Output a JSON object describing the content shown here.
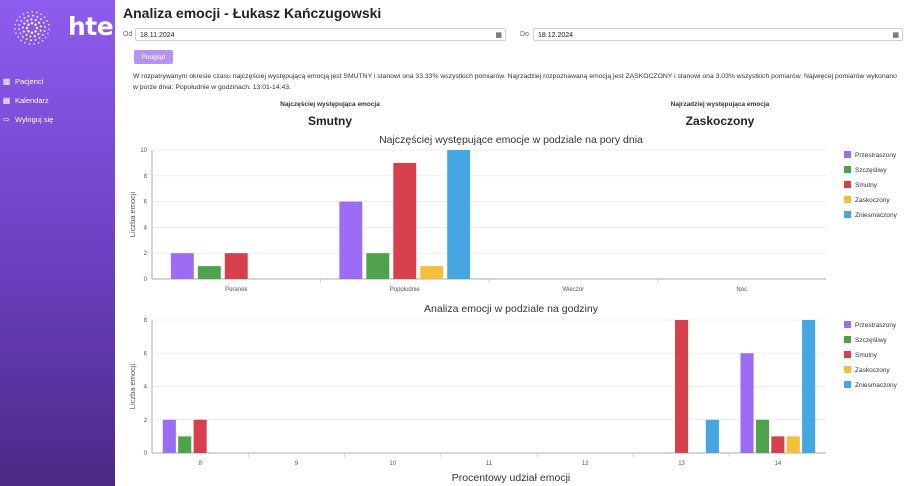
{
  "brand": {
    "name": "hte"
  },
  "nav": {
    "items": [
      {
        "label": "Pacjenci",
        "icon": "users-icon"
      },
      {
        "label": "Kalendarz",
        "icon": "calendar-icon"
      },
      {
        "label": "Wyloguj się",
        "icon": "logout-icon"
      }
    ]
  },
  "page": {
    "title": "Analiza emocji - Łukasz Kańczugowski"
  },
  "filters": {
    "from_label": "Od",
    "from_value": "18.11.2024",
    "to_label": "Do",
    "to_value": "18.12.2024",
    "button_label": "Podgląd"
  },
  "summary": {
    "line1": "W rozpatrywanym okresie czasu najczęściej występującą emocją jest SMUTNY i stanowi ona 33.33% wszystkich pomiarów. Najrzadziej rozpoznawaną emocją jest ZASKOCZONY i stanowi ona 3.03% wszystkich pomiarów. Najwięcej pomiarów wykonano",
    "line2": "w porze dnia: Popołudnie w godzinach: 13:01-14:43."
  },
  "stats": {
    "most_label": "Najczęściej występująca emocja",
    "most_value": "Smutny",
    "least_label": "Najrzadziej występująca emocja",
    "least_value": "Zaskoczony"
  },
  "colors": {
    "Przestraszony": "#9d6cf5",
    "Szczęśliwy": "#4ea24e",
    "Smutny": "#d6404c",
    "Zaskoczony": "#f4c03a",
    "Zniesmaczony": "#45a6e2"
  },
  "chart_data": [
    {
      "type": "bar",
      "title": "Najczęściej występujące emocje w podziale na pory dnia",
      "ylabel": "Liczba emocji",
      "ylim": [
        0,
        10
      ],
      "yticks": [
        0,
        2,
        4,
        6,
        8,
        10
      ],
      "categories": [
        "Poranek",
        "Popołudnie",
        "Wieczór",
        "Noc"
      ],
      "series": [
        {
          "name": "Przestraszony",
          "values": [
            2,
            6,
            0,
            0
          ]
        },
        {
          "name": "Szczęśliwy",
          "values": [
            1,
            2,
            0,
            0
          ]
        },
        {
          "name": "Smutny",
          "values": [
            2,
            9,
            0,
            0
          ]
        },
        {
          "name": "Zaskoczony",
          "values": [
            0,
            1,
            0,
            0
          ]
        },
        {
          "name": "Zniesmaczony",
          "values": [
            0,
            10,
            0,
            0
          ]
        }
      ],
      "legend": "right",
      "grid": true
    },
    {
      "type": "bar",
      "title": "Analiza emocji w podziale na godziny",
      "ylabel": "Liczba emocji",
      "ylim": [
        0,
        8
      ],
      "yticks": [
        0,
        2,
        4,
        6,
        8
      ],
      "categories": [
        "8",
        "9",
        "10",
        "11",
        "12",
        "13",
        "14"
      ],
      "series": [
        {
          "name": "Przestraszony",
          "values": [
            2,
            0,
            0,
            0,
            0,
            0,
            6
          ]
        },
        {
          "name": "Szczęśliwy",
          "values": [
            1,
            0,
            0,
            0,
            0,
            0,
            2
          ]
        },
        {
          "name": "Smutny",
          "values": [
            2,
            0,
            0,
            0,
            0,
            8,
            1
          ]
        },
        {
          "name": "Zaskoczony",
          "values": [
            0,
            0,
            0,
            0,
            0,
            0,
            1
          ]
        },
        {
          "name": "Zniesmaczony",
          "values": [
            0,
            0,
            0,
            0,
            0,
            2,
            8
          ]
        }
      ],
      "legend": "right",
      "grid": true
    },
    {
      "type": "pie",
      "title": "Procentowy udział emocji"
    }
  ]
}
